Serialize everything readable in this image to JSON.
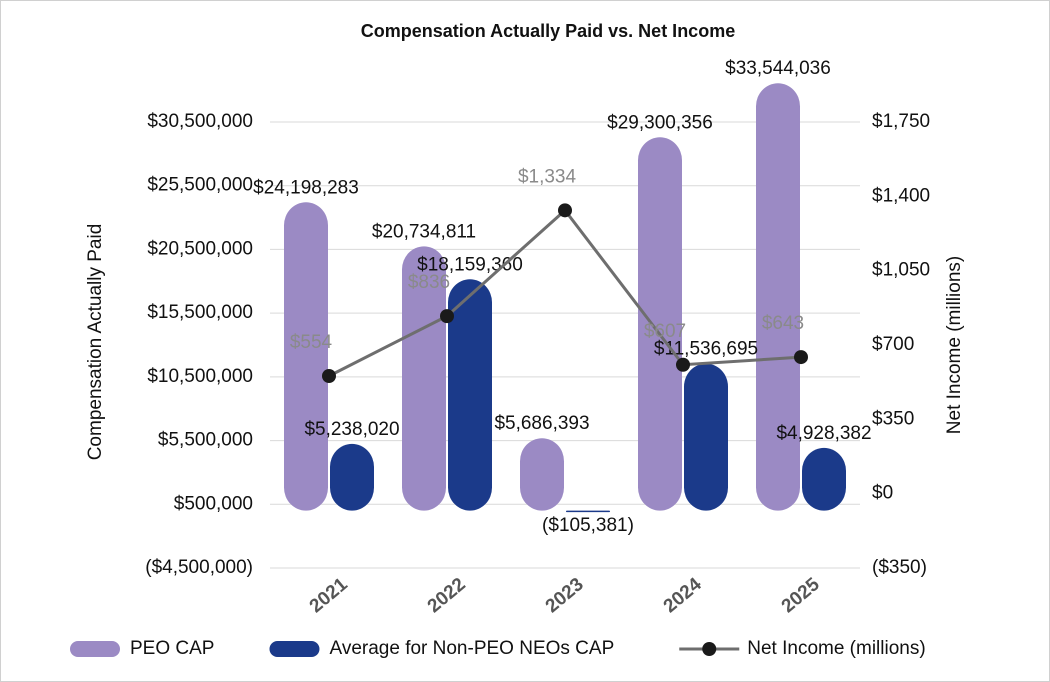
{
  "chart_data": {
    "type": "bar",
    "title": "Compensation Actually Paid vs. Net Income",
    "y_label": "Compensation Actually Paid",
    "y2_label": "Net Income (millions)",
    "categories": [
      "2021",
      "2022",
      "2023",
      "2024",
      "2025"
    ],
    "series": [
      {
        "name": "PEO CAP",
        "color": "#9b8ac4",
        "values": [
          24198283,
          20734811,
          5686393,
          29300356,
          33544036
        ],
        "value_labels": [
          "$24,198,283",
          "$20,734,811",
          "$5,686,393",
          "$29,300,356",
          "$33,544,036"
        ]
      },
      {
        "name": "Average for Non-PEO NEOs CAP",
        "color": "#1b3a8a",
        "values": [
          5238020,
          18159360,
          -105381,
          11536695,
          4928382
        ],
        "value_labels": [
          "$5,238,020",
          "$18,159,360",
          "($105,381)",
          "$11,536,695",
          "$4,928,382"
        ]
      },
      {
        "name": "Net Income (millions)",
        "color": "#6e6e6e",
        "type": "line",
        "axis": "y2",
        "values": [
          554,
          836,
          1334,
          607,
          643
        ],
        "value_labels": [
          "$554",
          "$836",
          "$1,334",
          "$607",
          "$643"
        ]
      }
    ],
    "ylim": [
      -4500000,
      30500000
    ],
    "yticks": [
      {
        "value": -4500000,
        "label": "($4,500,000)"
      },
      {
        "value": 500000,
        "label": "$500,000"
      },
      {
        "value": 5500000,
        "label": "$5,500,000"
      },
      {
        "value": 10500000,
        "label": "$10,500,000"
      },
      {
        "value": 15500000,
        "label": "$15,500,000"
      },
      {
        "value": 20500000,
        "label": "$20,500,000"
      },
      {
        "value": 25500000,
        "label": "$25,500,000"
      },
      {
        "value": 30500000,
        "label": "$30,500,000"
      }
    ],
    "y2lim": [
      -350,
      1750
    ],
    "y2ticks": [
      {
        "value": -350,
        "label": "($350)"
      },
      {
        "value": 0,
        "label": "$0"
      },
      {
        "value": 350,
        "label": "$350"
      },
      {
        "value": 700,
        "label": "$700"
      },
      {
        "value": 1050,
        "label": "$1,050"
      },
      {
        "value": 1400,
        "label": "$1,400"
      },
      {
        "value": 1750,
        "label": "$1,750"
      }
    ],
    "grid": true
  }
}
